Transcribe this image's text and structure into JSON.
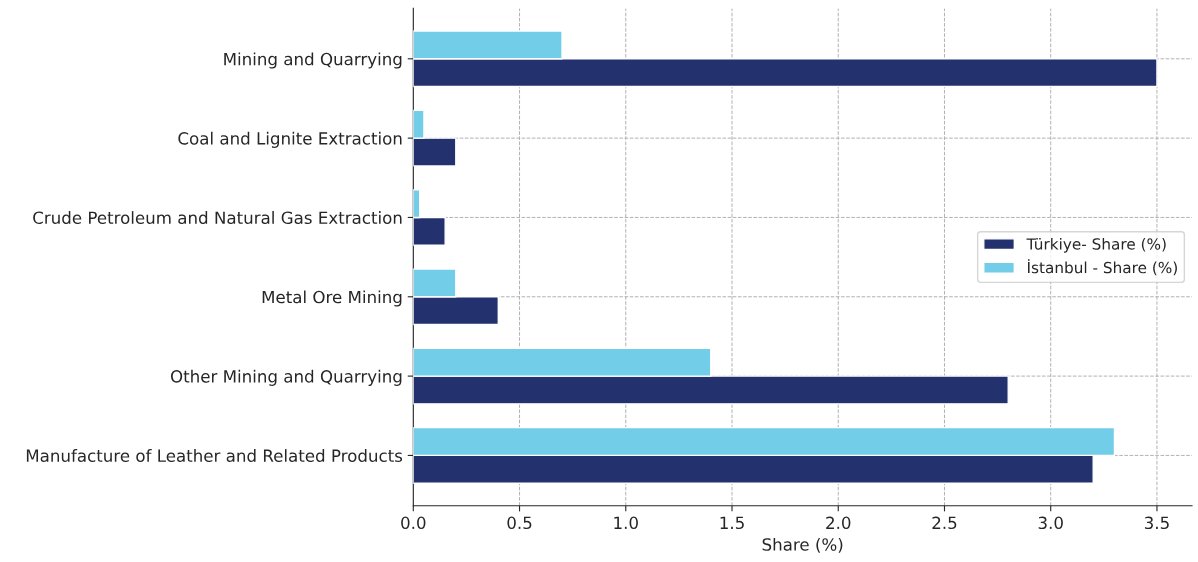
{
  "chart_data": {
    "type": "bar",
    "orientation": "horizontal",
    "xlabel": "Share (%)",
    "categories": [
      "Mining and Quarrying",
      "Coal and Lignite Extraction",
      "Crude Petroleum and Natural Gas Extraction",
      "Metal Ore Mining",
      "Other Mining and Quarrying",
      "Manufacture of Leather and Related Products"
    ],
    "series": [
      {
        "name": "Türkiye- Share (%)",
        "color": "#23316e",
        "values": [
          3.5,
          0.2,
          0.15,
          0.4,
          2.8,
          3.2
        ]
      },
      {
        "name": "İstanbul - Share (%)",
        "color": "#72cde9",
        "values": [
          0.7,
          0.05,
          0.03,
          0.2,
          1.4,
          3.3
        ]
      }
    ],
    "xlim": [
      0,
      3.665
    ],
    "xticks": [
      {
        "value": 0,
        "label": "0.0"
      },
      0.5,
      {
        "value": 1,
        "label": "1.0"
      },
      1.5,
      {
        "value": 2,
        "label": "2.0"
      },
      2.5,
      {
        "value": 3,
        "label": "3.0"
      },
      3.5
    ],
    "grid": true,
    "legend": "right"
  }
}
